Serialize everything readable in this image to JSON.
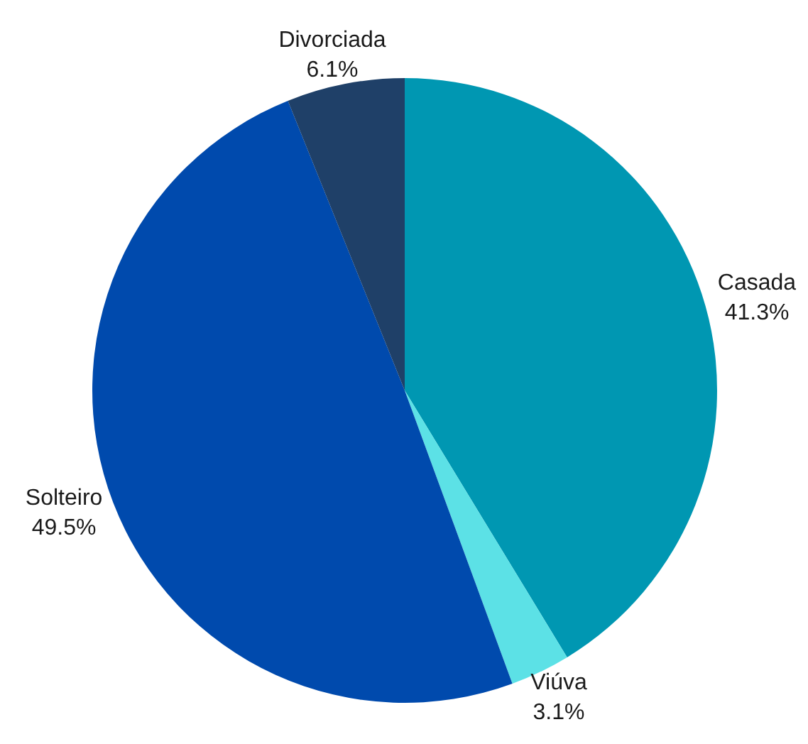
{
  "chart_data": {
    "type": "pie",
    "categories": [
      "Casada",
      "Viúva",
      "Solteiro",
      "Divorciada"
    ],
    "values": [
      41.3,
      3.1,
      49.5,
      6.1
    ],
    "colors": [
      "#0097b2",
      "#5ce1e6",
      "#004aad",
      "#1f4068"
    ],
    "value_labels": [
      "41.3%",
      "3.1%",
      "49.5%",
      "6.1%"
    ],
    "legend": false
  }
}
